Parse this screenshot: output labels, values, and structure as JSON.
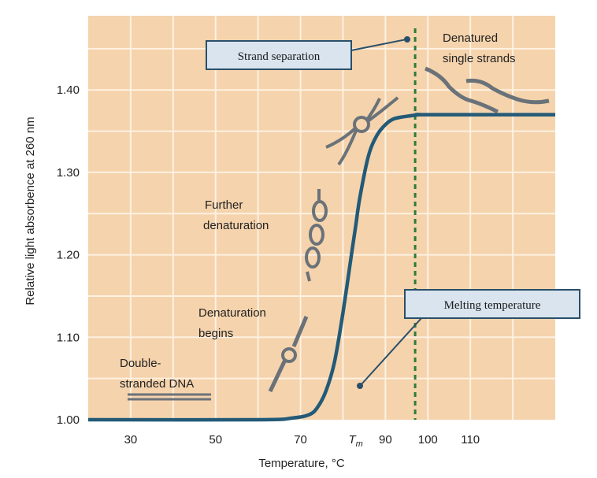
{
  "chart_data": {
    "type": "line",
    "xlabel": "Temperature, °C",
    "ylabel": "Relative light absorbence at 260 nm",
    "xlim": [
      20,
      130
    ],
    "ylim": [
      1.0,
      1.49
    ],
    "x_ticks": [
      30,
      50,
      70,
      90,
      100,
      110
    ],
    "y_ticks": [
      1.0,
      1.1,
      1.2,
      1.3,
      1.4
    ],
    "y_tick_labels": [
      "1.00",
      "1.10",
      "1.20",
      "1.30",
      "1.40"
    ],
    "tm_label": "T",
    "tm_subscript": "m",
    "tm_value": 83,
    "strand_separation_temp": 97,
    "series": [
      {
        "x": [
          20,
          60,
          68,
          72,
          74,
          76,
          78,
          80,
          82,
          83,
          84,
          86,
          88,
          90,
          92,
          95,
          98,
          100,
          130
        ],
        "y": [
          1.0,
          1.0,
          1.002,
          1.006,
          1.015,
          1.035,
          1.07,
          1.13,
          1.2,
          1.235,
          1.27,
          1.32,
          1.345,
          1.358,
          1.365,
          1.368,
          1.37,
          1.37,
          1.37
        ]
      }
    ],
    "annotations": {
      "strand_separation": "Strand separation",
      "melting_temperature": "Melting temperature",
      "denatured_line1": "Denatured",
      "denatured_line2": "single strands",
      "further_line1": "Further",
      "further_line2": "denaturation",
      "begins_line1": "Denaturation",
      "begins_line2": "begins",
      "ds_line1": "Double-",
      "ds_line2": "stranded DNA"
    },
    "colors": {
      "background": "#f5d3ac",
      "grid": "#fdf1e2",
      "curve": "#235a78",
      "dashed": "#2f7a3c",
      "callout_fill": "#d9e4ee",
      "callout_stroke": "#2a4f6a",
      "dna": "#6a7279"
    }
  }
}
